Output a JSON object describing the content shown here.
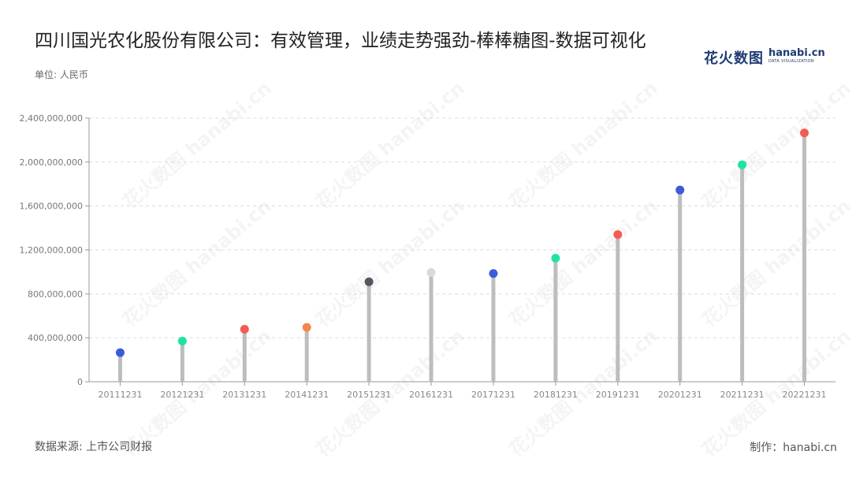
{
  "header": {
    "title": "四川国光农化股份有限公司：有效管理，业绩走势强劲-棒棒糖图-数据可视化",
    "unit": "单位: 人民币"
  },
  "logo": {
    "cn": "花火数图",
    "en": "hanabi.cn",
    "sub": "DATA VISUALIZATION",
    "color": "#1f3b73"
  },
  "footer": {
    "source": "数据来源: 上市公司财报",
    "credit": "制作：hanabi.cn"
  },
  "chart_data": {
    "type": "lollipop",
    "categories": [
      "20111231",
      "20121231",
      "20131231",
      "20141231",
      "20151231",
      "20161231",
      "20171231",
      "20181231",
      "20191231",
      "20201231",
      "20211231",
      "20221231"
    ],
    "values": [
      265000000,
      370000000,
      478000000,
      495000000,
      910000000,
      995000000,
      985000000,
      1125000000,
      1340000000,
      1745000000,
      1975000000,
      2265000000
    ],
    "colors": [
      "#3b5bdb",
      "#20e3a3",
      "#f25c54",
      "#f4874b",
      "#555760",
      "#d6dae3",
      "#3b5bdb",
      "#20e3a3",
      "#f25c54",
      "#3b5bdb",
      "#20e3a3",
      "#f25c54"
    ],
    "stem_color": "#bdbdbd",
    "ylim": [
      0,
      2400000000
    ],
    "yticks": [
      0,
      400000000,
      800000000,
      1200000000,
      1600000000,
      2000000000,
      2400000000
    ],
    "ytick_labels": [
      "0",
      "400,000,000",
      "800,000,000",
      "1,200,000,000",
      "1,600,000,000",
      "2,000,000,000",
      "2,400,000,000"
    ],
    "grid": true
  }
}
